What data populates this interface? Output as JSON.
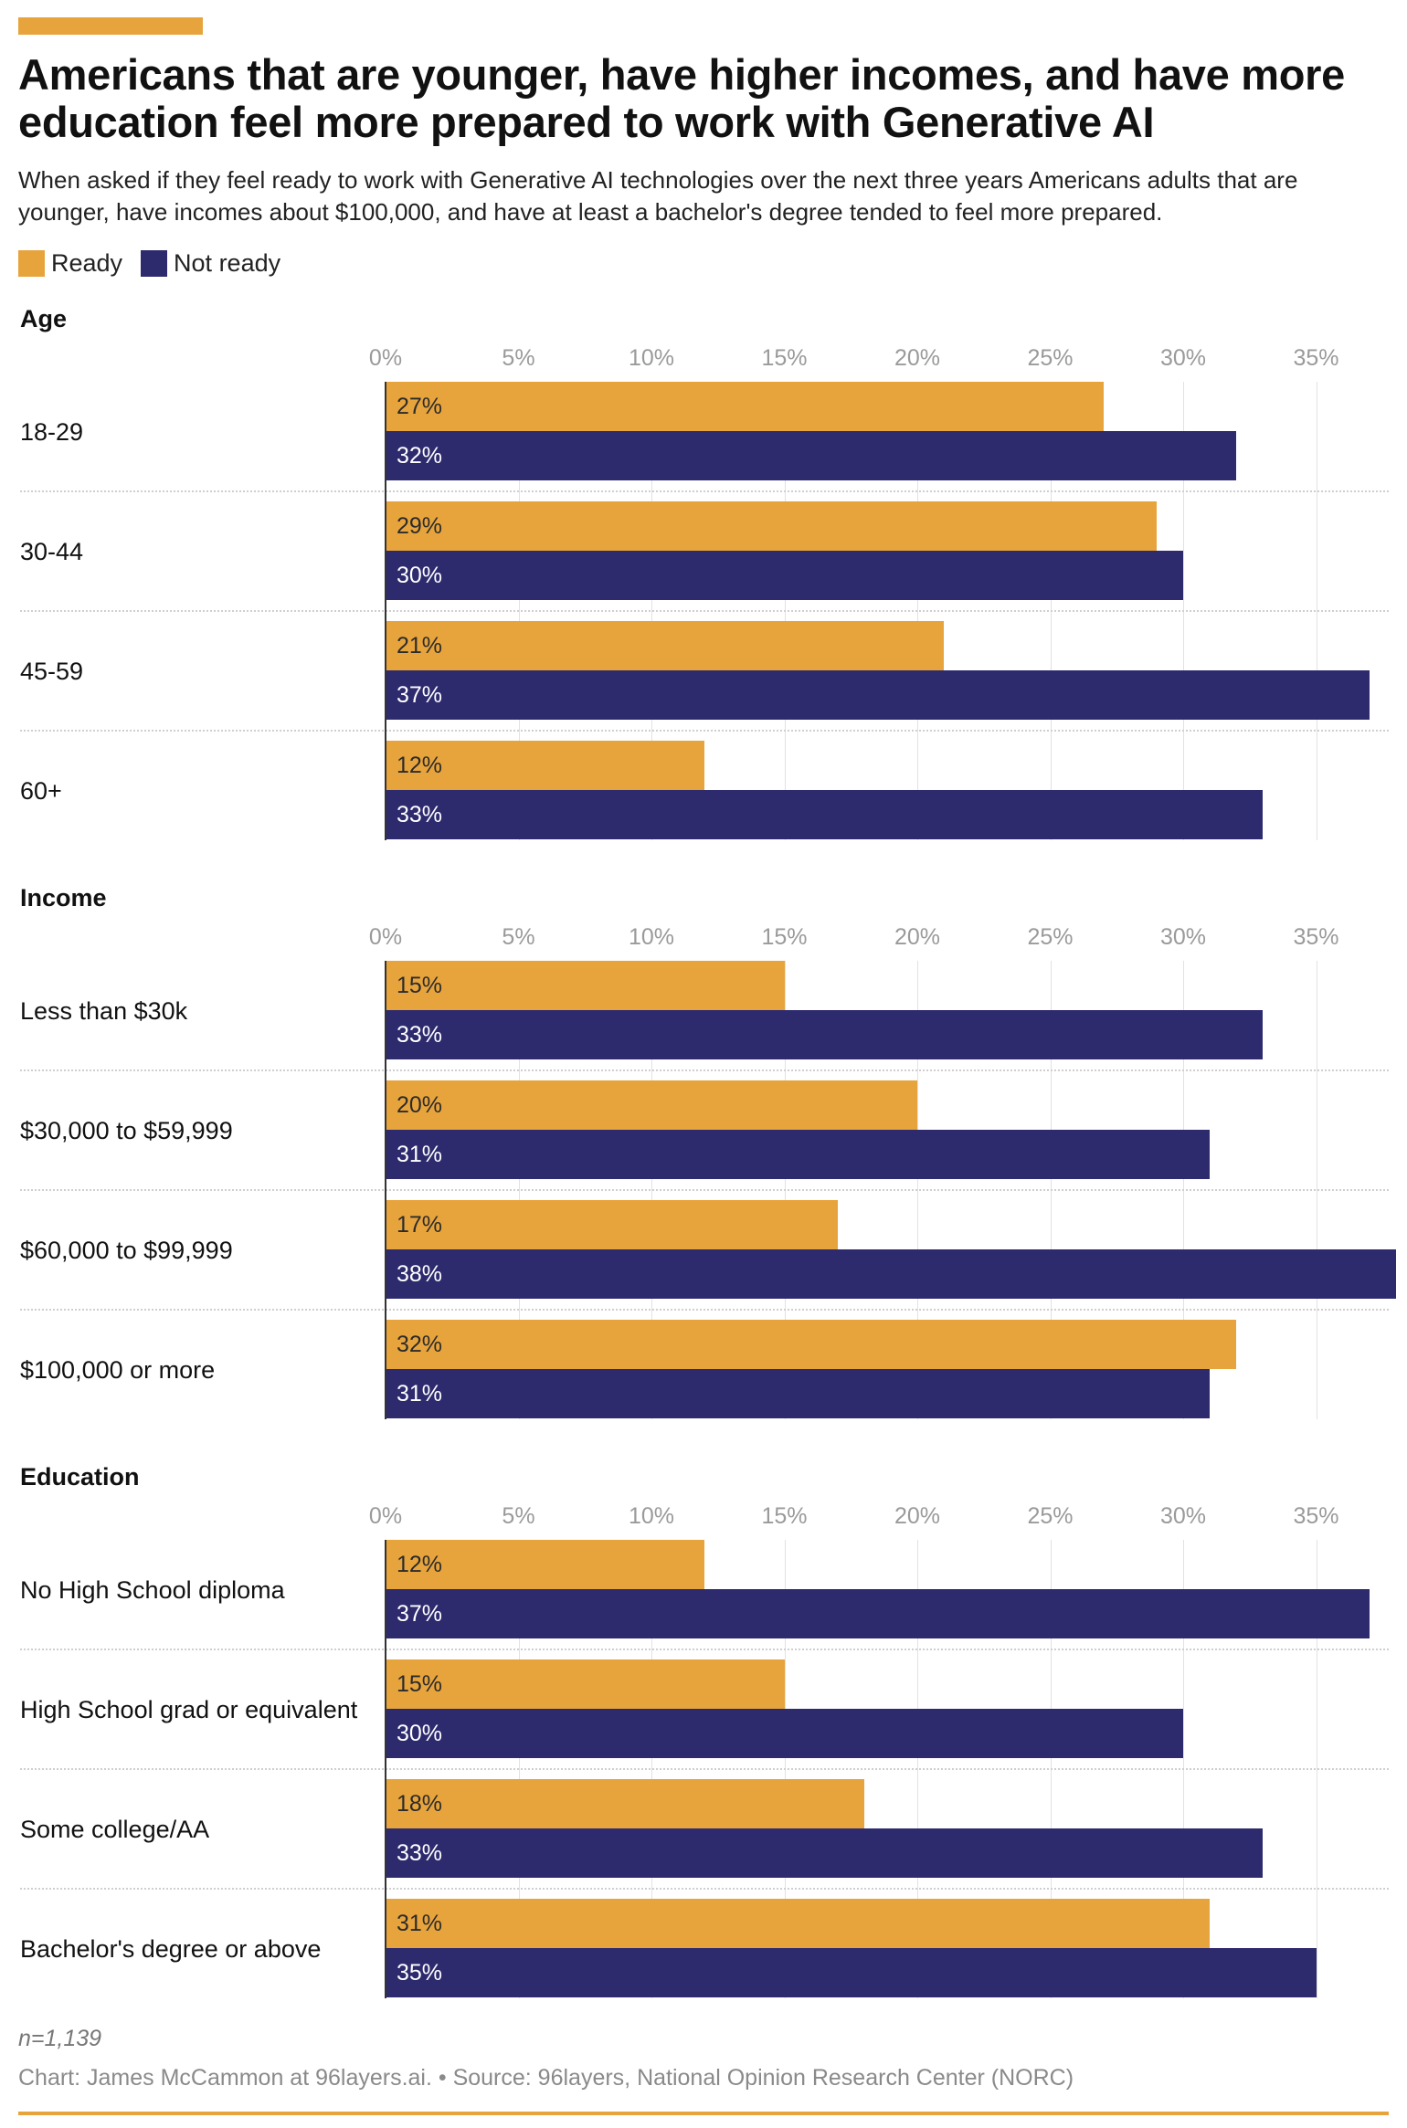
{
  "title": "Americans that are younger, have higher incomes, and have more education feel more prepared to work with Generative AI",
  "subtitle": "When asked if they feel ready to work with Generative AI technologies over the next three years Americans adults that are younger, have incomes about $100,000, and have at least a bachelor's degree tended to feel more prepared.",
  "colors": {
    "ready": "#e8a43c",
    "not_ready": "#2d2a6e"
  },
  "legend": {
    "ready": "Ready",
    "not_ready": "Not ready"
  },
  "chart_data": [
    {
      "type": "bar",
      "title": "Age",
      "categories": [
        "18-29",
        "30-44",
        "45-59",
        "60+"
      ],
      "series": [
        {
          "name": "Ready",
          "values": [
            27,
            29,
            21,
            12
          ]
        },
        {
          "name": "Not ready",
          "values": [
            32,
            30,
            37,
            33
          ]
        }
      ],
      "x_ticks": [
        "0%",
        "5%",
        "10%",
        "15%",
        "20%",
        "25%",
        "30%",
        "35%"
      ],
      "xlim": [
        0,
        38
      ],
      "grid": true
    },
    {
      "type": "bar",
      "title": "Income",
      "categories": [
        "Less than $30k",
        "$30,000 to $59,999",
        "$60,000 to $99,999",
        "$100,000 or more"
      ],
      "series": [
        {
          "name": "Ready",
          "values": [
            15,
            20,
            17,
            32
          ]
        },
        {
          "name": "Not ready",
          "values": [
            33,
            31,
            38,
            31
          ]
        }
      ],
      "x_ticks": [
        "0%",
        "5%",
        "10%",
        "15%",
        "20%",
        "25%",
        "30%",
        "35%"
      ],
      "xlim": [
        0,
        38
      ],
      "grid": true
    },
    {
      "type": "bar",
      "title": "Education",
      "categories": [
        "No High School diploma",
        "High School grad or equivalent",
        "Some college/AA",
        "Bachelor's degree or above"
      ],
      "series": [
        {
          "name": "Ready",
          "values": [
            12,
            15,
            18,
            31
          ]
        },
        {
          "name": "Not ready",
          "values": [
            37,
            30,
            33,
            35
          ]
        }
      ],
      "x_ticks": [
        "0%",
        "5%",
        "10%",
        "15%",
        "20%",
        "25%",
        "30%",
        "35%"
      ],
      "xlim": [
        0,
        38
      ],
      "grid": true
    }
  ],
  "footer": {
    "n": "n=1,139",
    "source": "Chart: James McCammon at 96layers.ai. • Source: 96layers, National Opinion Research Center (NORC)"
  }
}
